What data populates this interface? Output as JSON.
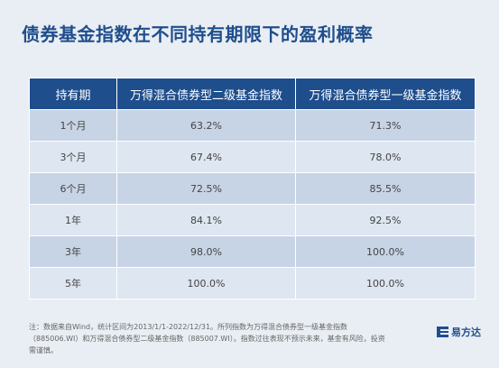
{
  "page": {
    "title": "债券基金指数在不同持有期限下的盈利概率",
    "footnote": "注：数据来自Wind，统计区间为2013/1/1-2022/12/31。所列指数为万得混合债券型一级基金指数（885006.WI）和万得混合债券型二级基金指数（885007.WI）。指数过往表现不预示未来，基金有风险，投资需谨慎。",
    "logo_text": "易方达"
  },
  "chart_data": {
    "type": "table",
    "title": "债券基金指数在不同持有期限下的盈利概率",
    "columns": [
      "持有期",
      "万得混合债券型二级基金指数",
      "万得混合债券型一级基金指数"
    ],
    "rows": [
      [
        "1个月",
        "63.2%",
        "71.3%"
      ],
      [
        "3个月",
        "67.4%",
        "78.0%"
      ],
      [
        "6个月",
        "72.5%",
        "85.5%"
      ],
      [
        "1年",
        "84.1%",
        "92.5%"
      ],
      [
        "3年",
        "98.0%",
        "100.0%"
      ],
      [
        "5年",
        "100.0%",
        "100.0%"
      ]
    ]
  },
  "colors": {
    "header_bg": "#1f4e8c",
    "row_odd_bg": "#c7d4e5",
    "row_even_bg": "#dde6f1",
    "page_bg": "#e9eef4"
  }
}
